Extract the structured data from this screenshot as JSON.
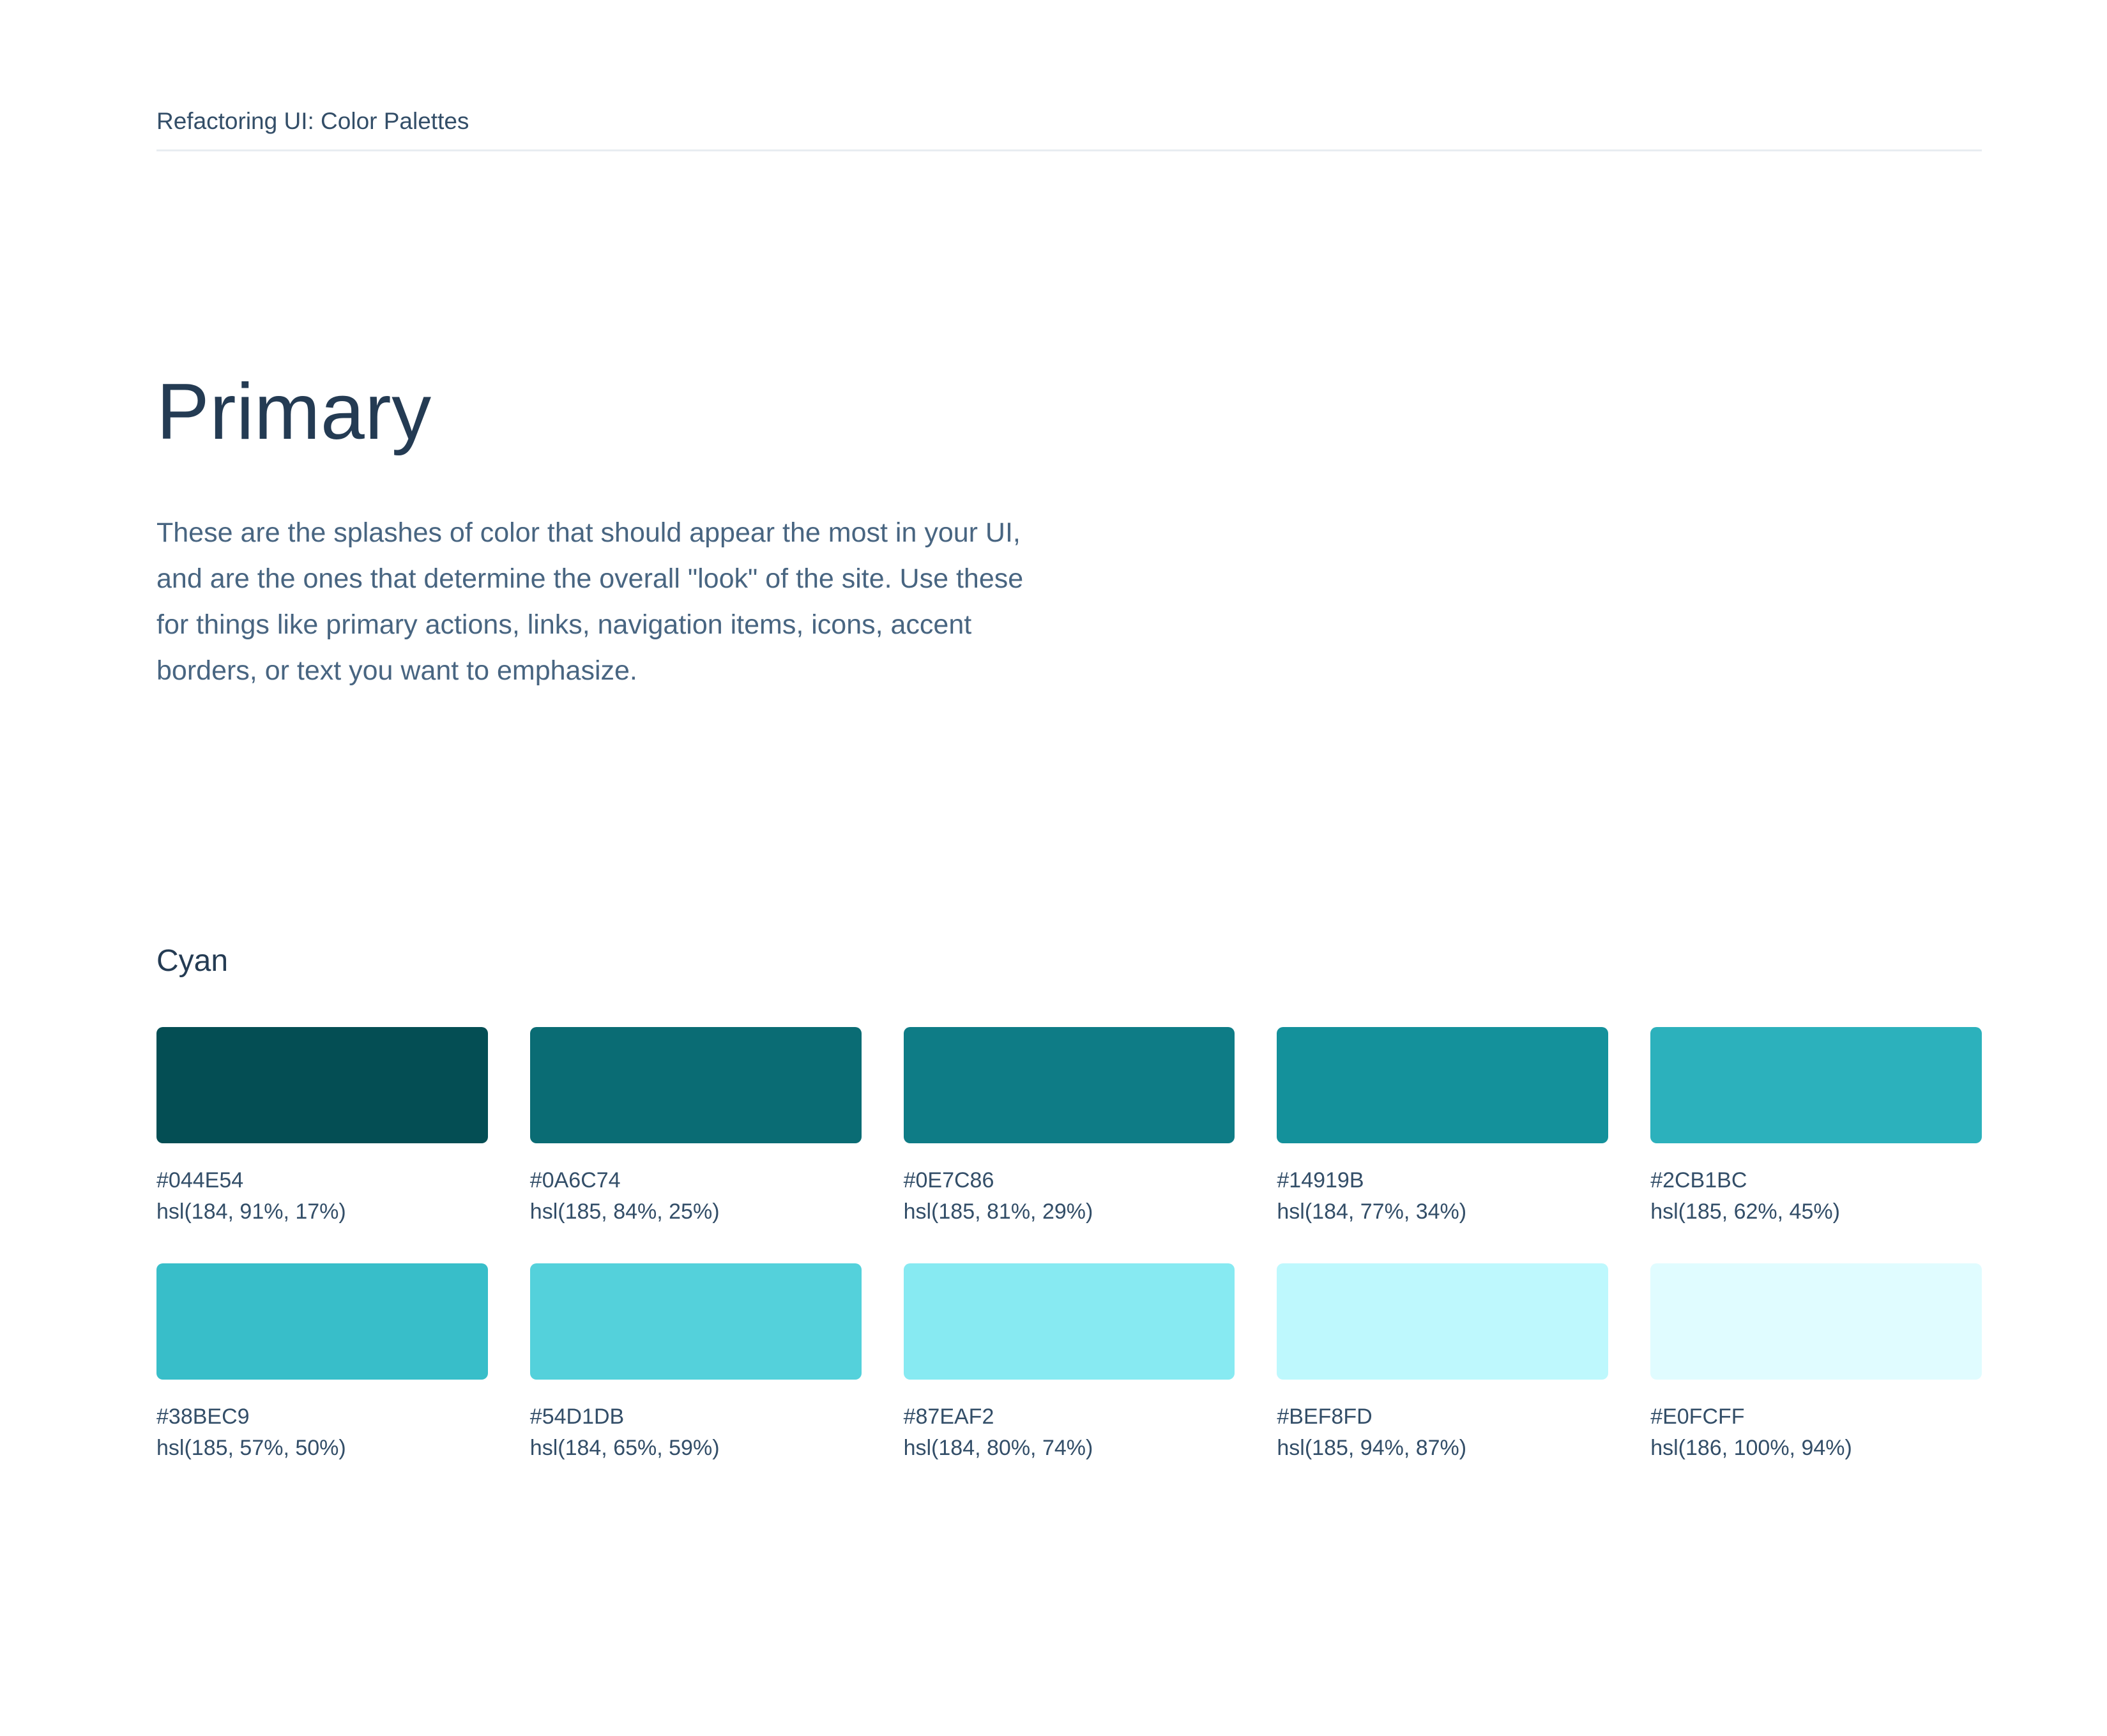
{
  "header": {
    "title": "Refactoring UI: Color Palettes"
  },
  "section": {
    "title": "Primary",
    "description": "These are the splashes of color that should appear the most in your UI,\nand are the ones that determine the overall \"look\" of the site. Use these\nfor things like primary actions, links, navigation items, icons, accent\nborders, or text you want to emphasize."
  },
  "palette": {
    "name": "Cyan",
    "swatches": [
      {
        "hex": "#044E54",
        "hsl": "hsl(184, 91%, 17%)"
      },
      {
        "hex": "#0A6C74",
        "hsl": "hsl(185, 84%, 25%)"
      },
      {
        "hex": "#0E7C86",
        "hsl": "hsl(185, 81%, 29%)"
      },
      {
        "hex": "#14919B",
        "hsl": "hsl(184, 77%, 34%)"
      },
      {
        "hex": "#2CB1BC",
        "hsl": "hsl(185, 62%, 45%)"
      },
      {
        "hex": "#38BEC9",
        "hsl": "hsl(185, 57%, 50%)"
      },
      {
        "hex": "#54D1DB",
        "hsl": "hsl(184, 65%, 59%)"
      },
      {
        "hex": "#87EAF2",
        "hsl": "hsl(184, 80%, 74%)"
      },
      {
        "hex": "#BEF8FD",
        "hsl": "hsl(185, 94%, 87%)"
      },
      {
        "hex": "#E0FCFF",
        "hsl": "hsl(186, 100%, 94%)"
      }
    ]
  },
  "colors": {
    "heading": "#243B53",
    "subheading": "#243B53",
    "body_text": "#486581",
    "swatch_label": "#334E68",
    "header_text": "#334E68",
    "divider": "#E8EDF1",
    "background": "#FFFFFF"
  }
}
